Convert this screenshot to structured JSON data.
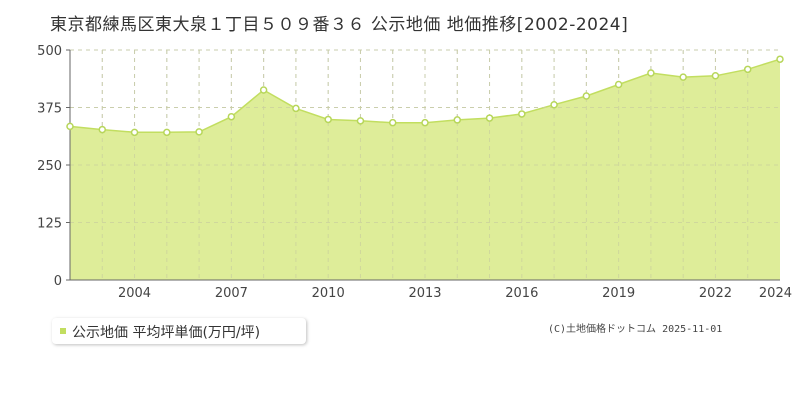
{
  "title": "東京都練馬区東大泉１丁目５０９番３６ 公示地価 地価推移[2002-2024]",
  "credit": "(C)土地価格ドットコム 2025-11-01",
  "colors": {
    "fill": "#dcec94",
    "line": "#c2de60",
    "point_stroke": "#b7d65a",
    "point_fill": "#ffffff",
    "grid": "#cccccc",
    "axis": "#666666"
  },
  "chart_data": {
    "type": "area",
    "title": "",
    "xlabel": "",
    "ylabel": "",
    "xlim": [
      2002,
      2024
    ],
    "ylim": [
      0,
      500
    ],
    "y_ticks": [
      0,
      125,
      250,
      375,
      500
    ],
    "x_ticks": [
      2004,
      2007,
      2010,
      2013,
      2016,
      2019,
      2022,
      2024
    ],
    "grid": true,
    "legend_position": "bottom-left",
    "series": [
      {
        "name": "公示地価 平均坪単価(万円/坪)",
        "x": [
          2002,
          2003,
          2004,
          2005,
          2006,
          2007,
          2008,
          2009,
          2010,
          2011,
          2012,
          2013,
          2014,
          2015,
          2016,
          2017,
          2018,
          2019,
          2020,
          2021,
          2022,
          2023,
          2024
        ],
        "values": [
          334,
          327,
          321,
          321,
          322,
          355,
          413,
          373,
          349,
          346,
          342,
          342,
          348,
          352,
          361,
          381,
          400,
          425,
          450,
          441,
          444,
          458,
          480
        ]
      }
    ]
  }
}
